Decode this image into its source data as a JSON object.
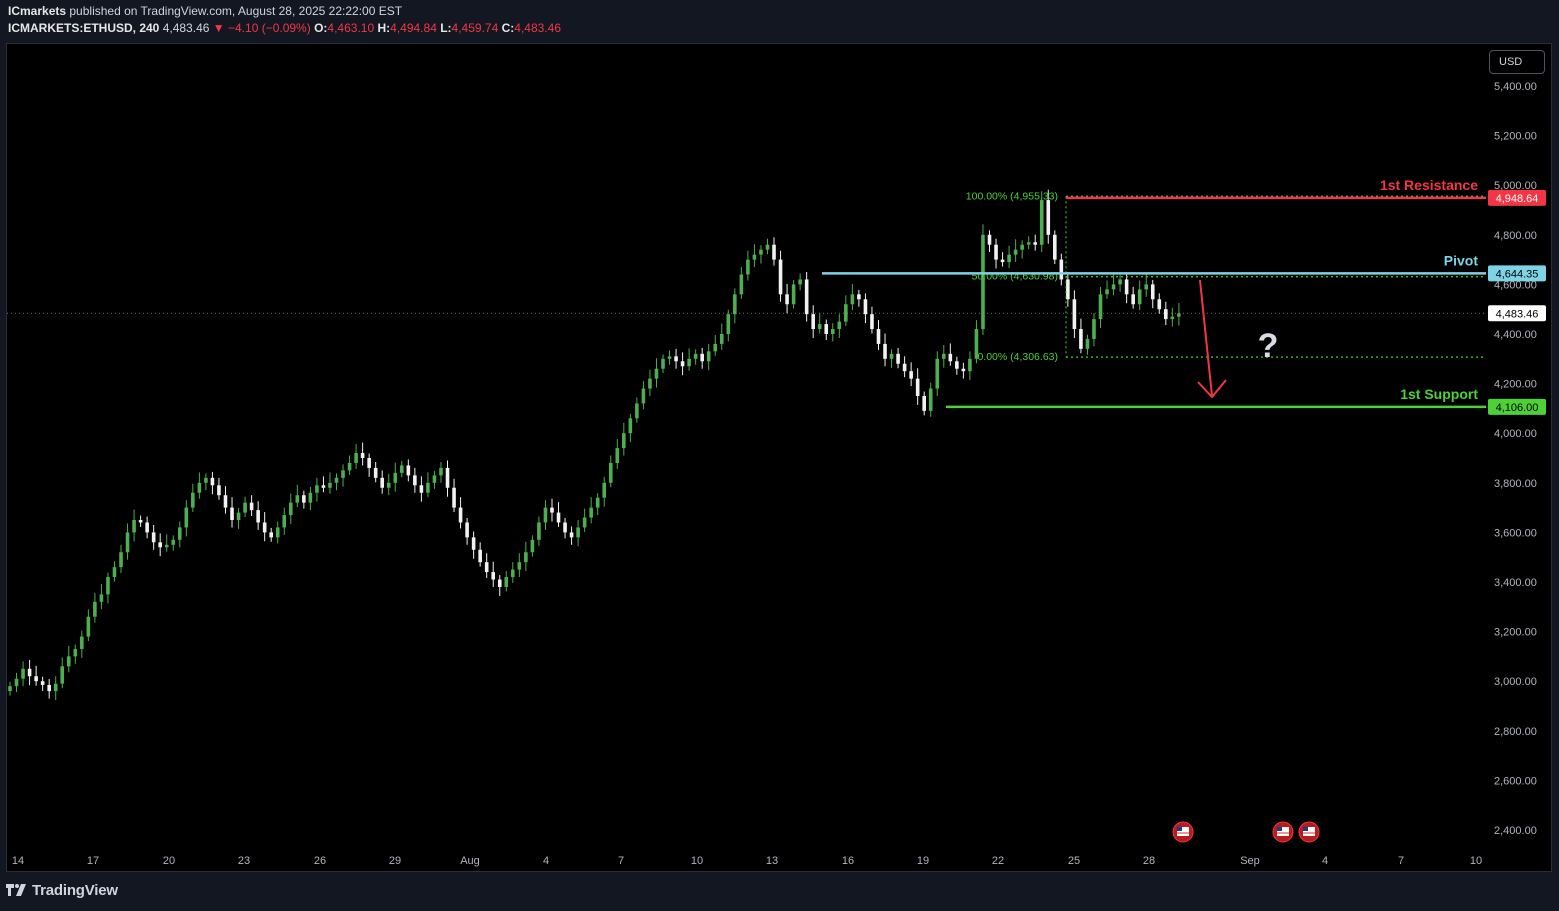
{
  "header": {
    "publisher": "ICmarkets",
    "published_text": "published on TradingView.com, August 28, 2025 22:22:00 EST",
    "symbol": "ICMARKETS:ETHUSD, 240",
    "last": "4,483.46",
    "change_arrow": "▼",
    "change": "−4.10 (−0.09%)",
    "o_label": "O:",
    "o_value": "4,463.10",
    "h_label": "H:",
    "h_value": "4,494.84",
    "l_label": "L:",
    "l_value": "4,459.74",
    "c_label": "C:",
    "c_value": "4,483.46"
  },
  "currency_button": "USD",
  "footer": {
    "brand": "TradingView",
    "logo_icon": "tradingview-logo-icon"
  },
  "colors": {
    "background": "#000000",
    "up": "#4caf50",
    "down": "#f2f2f2",
    "resistance": "#f23645",
    "pivot": "#7fd3e6",
    "support": "#4cd137",
    "fib": "#4cd137",
    "arrow": "#f23645"
  },
  "chart_data": {
    "type": "candlestick",
    "y_axis": {
      "range": [
        2350,
        5530
      ],
      "ticks": [
        {
          "v": 5400,
          "t": "5,400.00"
        },
        {
          "v": 5200,
          "t": "5,200.00"
        },
        {
          "v": 5000,
          "t": "5,000.00"
        },
        {
          "v": 4800,
          "t": "4,800.00"
        },
        {
          "v": 4600,
          "t": "4,600.00"
        },
        {
          "v": 4400,
          "t": "4,400.00"
        },
        {
          "v": 4200,
          "t": "4,200.00"
        },
        {
          "v": 4000,
          "t": "4,000.00"
        },
        {
          "v": 3800,
          "t": "3,800.00"
        },
        {
          "v": 3600,
          "t": "3,600.00"
        },
        {
          "v": 3400,
          "t": "3,400.00"
        },
        {
          "v": 3200,
          "t": "3,200.00"
        },
        {
          "v": 3000,
          "t": "3,000.00"
        },
        {
          "v": 2800,
          "t": "2,800.00"
        },
        {
          "v": 2600,
          "t": "2,600.00"
        },
        {
          "v": 2400,
          "t": "2,400.00"
        }
      ]
    },
    "x_axis": {
      "labels": [
        "14",
        "17",
        "20",
        "23",
        "26",
        "29",
        "Aug",
        "4",
        "7",
        "10",
        "13",
        "16",
        "19",
        "22",
        "25",
        "28",
        "Sep",
        "4",
        "7",
        "10"
      ]
    },
    "price_labels": [
      {
        "name": "1st Resistance",
        "value": 4948.64,
        "text": "4,948.64",
        "color": "#f23645"
      },
      {
        "name": "Pivot",
        "value": 4644.35,
        "text": "4,644.35",
        "color": "#7fd3e6"
      },
      {
        "name": "last",
        "value": 4483.46,
        "text": "4,483.46",
        "color": "#ffffff"
      },
      {
        "name": "1st Support",
        "value": 4106.0,
        "text": "4,106.00",
        "color": "#4cd137"
      }
    ],
    "levels": [
      {
        "label": "1st Resistance",
        "value": 4948.64
      },
      {
        "label": "Pivot",
        "value": 4644.35
      },
      {
        "label": "1st Support",
        "value": 4106.0
      }
    ],
    "fib_labels": [
      {
        "text": "100.00% (4,955.33)",
        "value": 4955.33
      },
      {
        "text": "50.00% (4,630.98)",
        "value": 4630.98
      },
      {
        "text": "0.00% (4,306.63)",
        "value": 4306.63
      }
    ],
    "annotation": "?",
    "closes": [
      2980,
      3010,
      3050,
      3020,
      3000,
      2985,
      2960,
      2990,
      3060,
      3100,
      3130,
      3180,
      3260,
      3320,
      3350,
      3420,
      3460,
      3520,
      3600,
      3650,
      3640,
      3600,
      3560,
      3540,
      3550,
      3570,
      3620,
      3700,
      3760,
      3800,
      3820,
      3790,
      3750,
      3700,
      3650,
      3680,
      3720,
      3690,
      3640,
      3600,
      3580,
      3620,
      3670,
      3720,
      3750,
      3720,
      3760,
      3790,
      3780,
      3800,
      3820,
      3850,
      3880,
      3920,
      3900,
      3860,
      3820,
      3780,
      3800,
      3840,
      3870,
      3830,
      3790,
      3760,
      3800,
      3830,
      3860,
      3780,
      3700,
      3640,
      3580,
      3530,
      3480,
      3440,
      3410,
      3380,
      3420,
      3450,
      3480,
      3520,
      3570,
      3640,
      3700,
      3680,
      3640,
      3600,
      3580,
      3620,
      3660,
      3700,
      3740,
      3800,
      3880,
      3940,
      4000,
      4060,
      4120,
      4180,
      4220,
      4260,
      4300,
      4310,
      4290,
      4270,
      4300,
      4320,
      4290,
      4330,
      4360,
      4400,
      4480,
      4560,
      4640,
      4700,
      4720,
      4740,
      4760,
      4700,
      4560,
      4520,
      4600,
      4620,
      4480,
      4420,
      4440,
      4400,
      4420,
      4450,
      4520,
      4560,
      4540,
      4480,
      4420,
      4360,
      4300,
      4320,
      4280,
      4250,
      4220,
      4150,
      4090,
      4180,
      4300,
      4320,
      4290,
      4260,
      4250,
      4300,
      4420,
      4800,
      4760,
      4700,
      4690,
      4720,
      4740,
      4760,
      4770,
      4760,
      4940,
      4800,
      4700,
      4620,
      4540,
      4420,
      4340,
      4380,
      4460,
      4560,
      4580,
      4600,
      4620,
      4560,
      4520,
      4580,
      4600,
      4540,
      4500,
      4460,
      4470,
      4483
    ]
  }
}
